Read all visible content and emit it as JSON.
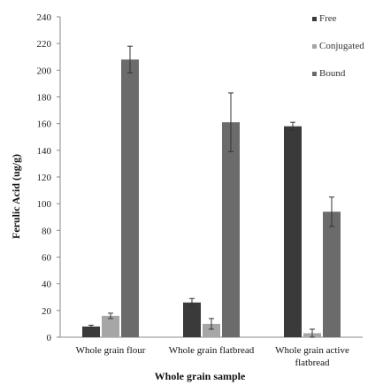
{
  "chart_data": {
    "type": "bar",
    "title": "",
    "xlabel": "Whole grain sample",
    "ylabel": "Ferulic Acid (ug/g)",
    "ylim": [
      0,
      240
    ],
    "yticks": [
      0,
      20,
      40,
      60,
      80,
      100,
      120,
      140,
      160,
      180,
      200,
      220,
      240
    ],
    "grid": false,
    "legend_position": "top-right",
    "categories": [
      "Whole grain flour",
      "Whole grain flatbread",
      "Whole grain active\nflatbread"
    ],
    "series": [
      {
        "name": "Free",
        "color": "#3a3a3a",
        "values": [
          8,
          26,
          158
        ],
        "errors": [
          1,
          3,
          3
        ]
      },
      {
        "name": "Conjugated",
        "color": "#a6a6a6",
        "values": [
          16,
          10,
          3
        ],
        "errors": [
          2,
          4,
          3
        ]
      },
      {
        "name": "Bound",
        "color": "#6b6b6b",
        "values": [
          208,
          161,
          94
        ],
        "errors": [
          10,
          22,
          11
        ]
      }
    ]
  }
}
